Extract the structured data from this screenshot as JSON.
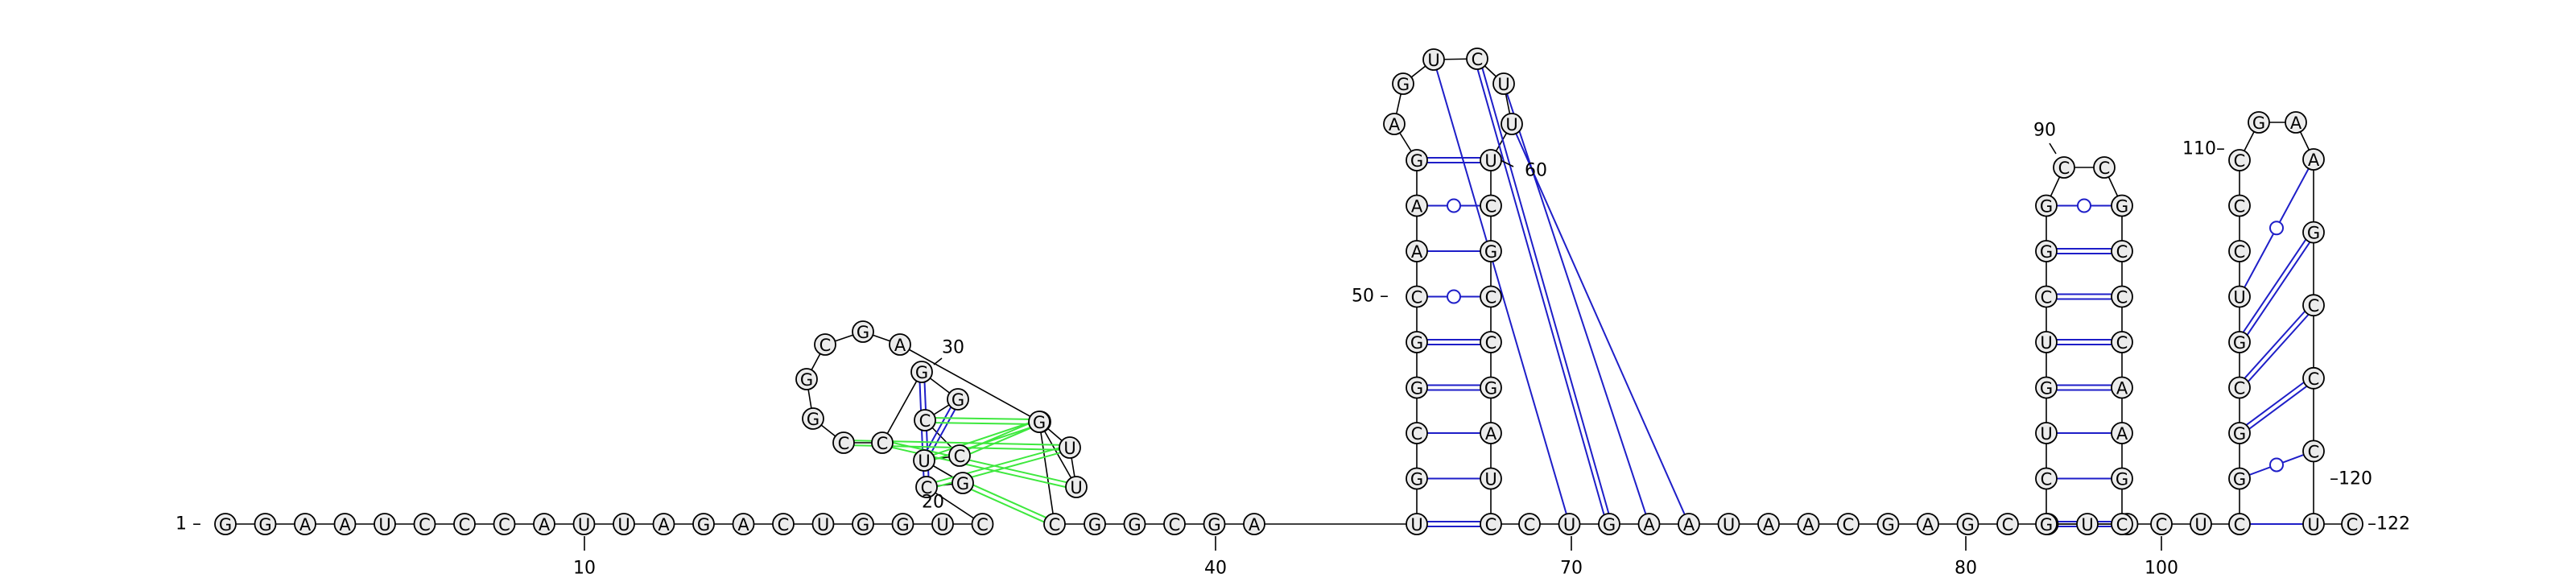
{
  "sequence": "GGAAUCCCAUUAGACUGGUCCGUCCGGCCGGCGAGUUGCGGCGAUGCGGCAAGAGUCUUUCGCCGAUCCUGAAUAACGAGCAUCGCUGUCGGCCGCCCAAGCCUCGGCGUCCCGAAGCCCUC",
  "labels": {
    "start": "1 –",
    "end": "–122",
    "n10": "10",
    "n20": "20",
    "n30": "30",
    "n40": "40",
    "n50": "50 –",
    "n60": "60",
    "n70": "70",
    "n80": "80",
    "n90": "90",
    "n100": "100",
    "n110": "110–",
    "n120": "–120"
  },
  "colors": {
    "canonical_pair": "#1e1ec8",
    "wobble_pair": "#1e1ec8",
    "pseudoknot_pair": "#3ee83e",
    "nucleotide_fill": "#ececec",
    "backbone": "#000000"
  },
  "pair_types": [
    "canonical (double line)",
    "single Watson-Crick line",
    "G-U wobble (circle)",
    "pseudoknot (green)"
  ]
}
